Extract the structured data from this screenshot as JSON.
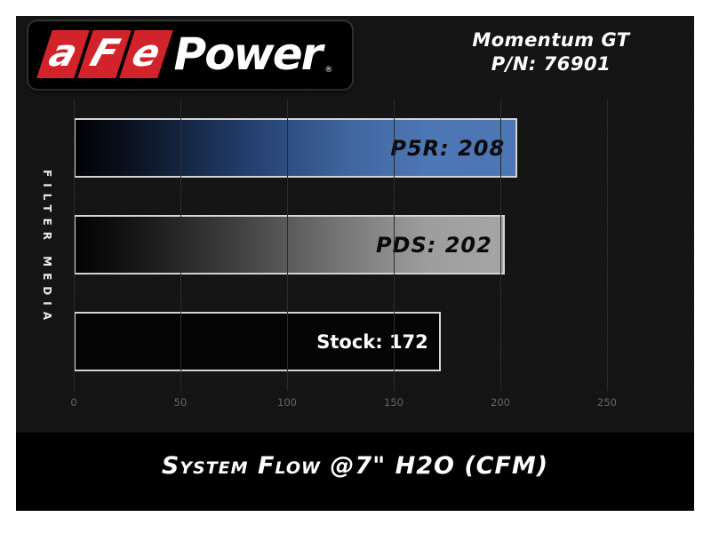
{
  "header": {
    "logo": {
      "prefix_letters": [
        "a",
        "F",
        "e"
      ],
      "suffix": "Power",
      "registered": "®"
    },
    "model": "Momentum GT",
    "part_number": "P/N: 76901"
  },
  "chart_data": {
    "type": "bar",
    "orientation": "horizontal",
    "title": "System Flow @7\" H2O (CFM)",
    "ylabel": "FILTER MEDIA",
    "categories": [
      "P5R",
      "PDS",
      "Stock"
    ],
    "series": [
      {
        "name": "P5R",
        "value": 208,
        "label": "P5R: 208",
        "fill": "black-to-blue-gradient",
        "color": "#4c76b4"
      },
      {
        "name": "PDS",
        "value": 202,
        "label": "PDS: 202",
        "fill": "black-to-silver-gradient",
        "color": "#a5a5a5"
      },
      {
        "name": "Stock",
        "value": 172,
        "label": "Stock: 172",
        "fill": "solid-black",
        "color": "#040404"
      }
    ],
    "xlim": [
      0,
      250
    ],
    "x_ticks": [
      0,
      50,
      100,
      150,
      200,
      250
    ],
    "grid": true,
    "legend": "none"
  },
  "colors": {
    "page_background": "#ffffff",
    "canvas_background": "#0f0f0f",
    "footer_background": "#000000",
    "accent_red": "#d2232a",
    "bar_border": "#d4d4d4",
    "gridline": "#2b2b2b",
    "tick_text": "#646464",
    "text_primary": "#ffffff"
  }
}
